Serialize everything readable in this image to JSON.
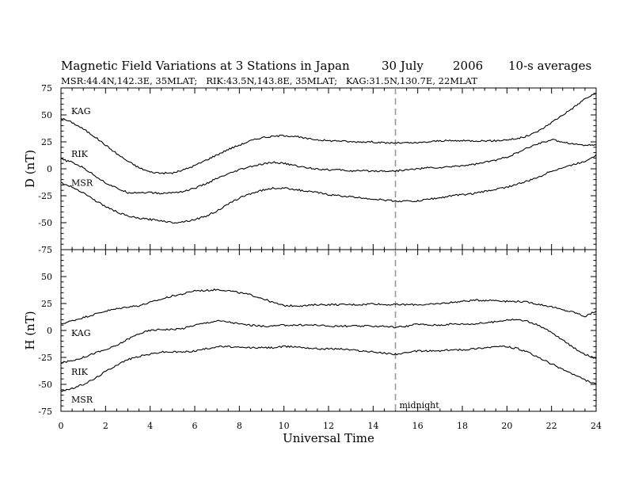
{
  "chart_data": {
    "type": "line",
    "title": "Magnetic Field Variations at 3 Stations in Japan",
    "date": "30 July",
    "year": "2006",
    "averaging": "10-s averages",
    "subtitle": "MSR:44.4N,142.3E, 35MLAT;   RIK:43.5N,143.8E, 35MLAT;   KAG:31.5N,130.7E, 22MLAT",
    "xlabel": "Universal Time",
    "xlim": [
      0,
      24
    ],
    "xticks": [
      0,
      2,
      4,
      6,
      8,
      10,
      12,
      14,
      16,
      18,
      20,
      22,
      24
    ],
    "marker": {
      "x": 15,
      "label": "midnight",
      "style": "dashed",
      "color": "#999999"
    },
    "panels": [
      {
        "ylabel": "D (nT)",
        "ylim": [
          -75,
          75
        ],
        "yticks": [
          75,
          50,
          25,
          0,
          -25,
          -50,
          -75
        ],
        "series": [
          {
            "name": "KAG",
            "x": [
              0,
              0.5,
              1,
              1.5,
              2,
              2.5,
              3,
              3.5,
              4,
              4.5,
              5,
              5.5,
              6,
              6.5,
              7,
              7.5,
              8,
              8.5,
              9,
              9.5,
              10,
              10.5,
              11,
              11.5,
              12,
              12.5,
              13,
              13.5,
              14,
              14.5,
              15,
              15.5,
              16,
              16.5,
              17,
              17.5,
              18,
              18.5,
              19,
              19.5,
              20,
              20.5,
              21,
              21.5,
              22,
              22.5,
              23,
              23.5,
              24
            ],
            "values": [
              47,
              43,
              37,
              30,
              22,
              14,
              7,
              1,
              -3,
              -4,
              -4,
              -1,
              3,
              8,
              13,
              18,
              22,
              26,
              29,
              30,
              31,
              30,
              28,
              27,
              26,
              26,
              25,
              25,
              25,
              24,
              24,
              24,
              24,
              25,
              26,
              26,
              26,
              26,
              26,
              26,
              27,
              28,
              31,
              36,
              43,
              50,
              57,
              65,
              70
            ]
          },
          {
            "name": "RIK",
            "x": [
              0,
              0.5,
              1,
              1.5,
              2,
              2.5,
              3,
              3.5,
              4,
              4.5,
              5,
              5.5,
              6,
              6.5,
              7,
              7.5,
              8,
              8.5,
              9,
              9.5,
              10,
              10.5,
              11,
              11.5,
              12,
              12.5,
              13,
              13.5,
              14,
              14.5,
              15,
              15.5,
              16,
              16.5,
              17,
              17.5,
              18,
              18.5,
              19,
              19.5,
              20,
              20.5,
              21,
              21.5,
              22,
              22.5,
              23,
              23.5,
              24
            ],
            "values": [
              9,
              6,
              1,
              -6,
              -13,
              -18,
              -22,
              -22,
              -22,
              -23,
              -22,
              -21,
              -18,
              -14,
              -9,
              -5,
              -1,
              2,
              4,
              6,
              5,
              3,
              1,
              0,
              -1,
              -1,
              -2,
              -2,
              -2,
              -2,
              -2,
              -1,
              0,
              1,
              1,
              2,
              3,
              4,
              6,
              8,
              11,
              15,
              20,
              24,
              27,
              25,
              23,
              22,
              22
            ]
          },
          {
            "name": "MSR",
            "x": [
              0,
              0.5,
              1,
              1.5,
              2,
              2.5,
              3,
              3.5,
              4,
              4.5,
              5,
              5.5,
              6,
              6.5,
              7,
              7.5,
              8,
              8.5,
              9,
              9.5,
              10,
              10.5,
              11,
              11.5,
              12,
              12.5,
              13,
              13.5,
              14,
              14.5,
              15,
              15.5,
              16,
              16.5,
              17,
              17.5,
              18,
              18.5,
              19,
              19.5,
              20,
              20.5,
              21,
              21.5,
              22,
              22.5,
              23,
              23.5,
              24
            ],
            "values": [
              -13,
              -17,
              -22,
              -29,
              -35,
              -40,
              -44,
              -46,
              -47,
              -48,
              -50,
              -49,
              -47,
              -44,
              -39,
              -33,
              -27,
              -23,
              -20,
              -18,
              -18,
              -19,
              -21,
              -22,
              -24,
              -25,
              -26,
              -27,
              -28,
              -29,
              -30,
              -30,
              -30,
              -28,
              -27,
              -25,
              -24,
              -23,
              -21,
              -19,
              -17,
              -14,
              -11,
              -7,
              -2,
              1,
              4,
              7,
              13
            ]
          }
        ]
      },
      {
        "ylabel": "H (nT)",
        "ylim": [
          -75,
          75
        ],
        "yticks": [
          75,
          50,
          25,
          0,
          -25,
          -50,
          -75
        ],
        "series": [
          {
            "name": "KAG",
            "x": [
              0,
              0.5,
              1,
              1.5,
              2,
              2.5,
              3,
              3.5,
              4,
              4.5,
              5,
              5.5,
              6,
              6.5,
              7,
              7.5,
              8,
              8.5,
              9,
              9.5,
              10,
              10.5,
              11,
              11.5,
              12,
              12.5,
              13,
              13.5,
              14,
              14.5,
              15,
              15.5,
              16,
              16.5,
              17,
              17.5,
              18,
              18.5,
              19,
              19.5,
              20,
              20.5,
              21,
              21.5,
              22,
              22.5,
              23,
              23.5,
              24
            ],
            "values": [
              6,
              9,
              12,
              15,
              18,
              20,
              22,
              23,
              26,
              29,
              32,
              34,
              37,
              37,
              38,
              37,
              35,
              33,
              30,
              26,
              23,
              23,
              23,
              24,
              24,
              24,
              24,
              24,
              25,
              24,
              24,
              24,
              24,
              24,
              25,
              26,
              27,
              28,
              28,
              28,
              27,
              27,
              26,
              24,
              22,
              19,
              17,
              13,
              18
            ]
          },
          {
            "name": "RIK",
            "x": [
              0,
              0.5,
              1,
              1.5,
              2,
              2.5,
              3,
              3.5,
              4,
              4.5,
              5,
              5.5,
              6,
              6.5,
              7,
              7.5,
              8,
              8.5,
              9,
              9.5,
              10,
              10.5,
              11,
              11.5,
              12,
              12.5,
              13,
              13.5,
              14,
              14.5,
              15,
              15.5,
              16,
              16.5,
              17,
              17.5,
              18,
              18.5,
              19,
              19.5,
              20,
              20.5,
              21,
              21.5,
              22,
              22.5,
              23,
              23.5,
              24
            ],
            "values": [
              -30,
              -28,
              -25,
              -21,
              -18,
              -14,
              -8,
              -3,
              0,
              1,
              1,
              2,
              5,
              7,
              9,
              8,
              6,
              5,
              4,
              4,
              5,
              5,
              5,
              5,
              4,
              4,
              4,
              4,
              4,
              4,
              3,
              4,
              6,
              5,
              5,
              6,
              6,
              6,
              7,
              8,
              10,
              10,
              8,
              4,
              -2,
              -9,
              -16,
              -22,
              -26
            ]
          },
          {
            "name": "MSR",
            "x": [
              0,
              0.5,
              1,
              1.5,
              2,
              2.5,
              3,
              3.5,
              4,
              4.5,
              5,
              5.5,
              6,
              6.5,
              7,
              7.5,
              8,
              8.5,
              9,
              9.5,
              10,
              10.5,
              11,
              11.5,
              12,
              12.5,
              13,
              13.5,
              14,
              14.5,
              15,
              15.5,
              16,
              16.5,
              17,
              17.5,
              18,
              18.5,
              19,
              19.5,
              20,
              20.5,
              21,
              21.5,
              22,
              22.5,
              23,
              23.5,
              24
            ],
            "values": [
              -56,
              -54,
              -50,
              -45,
              -38,
              -32,
              -27,
              -24,
              -22,
              -20,
              -20,
              -20,
              -19,
              -17,
              -15,
              -15,
              -16,
              -16,
              -16,
              -16,
              -15,
              -15,
              -16,
              -17,
              -17,
              -17,
              -18,
              -19,
              -20,
              -21,
              -22,
              -21,
              -19,
              -19,
              -19,
              -18,
              -18,
              -17,
              -16,
              -15,
              -15,
              -17,
              -21,
              -26,
              -31,
              -36,
              -41,
              -46,
              -50
            ]
          }
        ]
      }
    ]
  }
}
